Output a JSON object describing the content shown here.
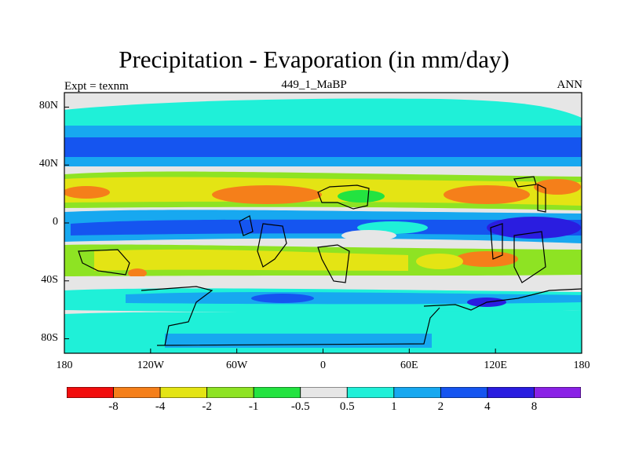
{
  "title": "Precipitation - Evaporation (in mm/day)",
  "subtitle": "449_1_MaBP",
  "left_note": "Expt = texnm",
  "right_note": "ANN",
  "map": {
    "lon_range": [
      -180,
      180
    ],
    "lat_range": [
      -90,
      90
    ],
    "y_ticks": [
      {
        "label": "80N",
        "lat": 80
      },
      {
        "label": "40N",
        "lat": 40
      },
      {
        "label": "0",
        "lat": 0
      },
      {
        "label": "40S",
        "lat": -40
      },
      {
        "label": "80S",
        "lat": -80
      }
    ],
    "x_ticks": [
      {
        "label": "180",
        "lon": -180
      },
      {
        "label": "120W",
        "lon": -120
      },
      {
        "label": "60W",
        "lon": -60
      },
      {
        "label": "0",
        "lon": 0
      },
      {
        "label": "60E",
        "lon": 60
      },
      {
        "label": "120E",
        "lon": 120
      },
      {
        "label": "180",
        "lon": 180
      }
    ]
  },
  "colorbar": {
    "colors": [
      "#f20d0d",
      "#f57f1a",
      "#e4e414",
      "#8ee323",
      "#23e340",
      "#e6e6e6",
      "#1ff0d8",
      "#17a8f0",
      "#1555f0",
      "#2a1de0",
      "#8a21e6"
    ],
    "labels": [
      "-8",
      "-4",
      "-2",
      "-1",
      "-0.5",
      "0.5",
      "1",
      "2",
      "4",
      "8"
    ]
  }
}
